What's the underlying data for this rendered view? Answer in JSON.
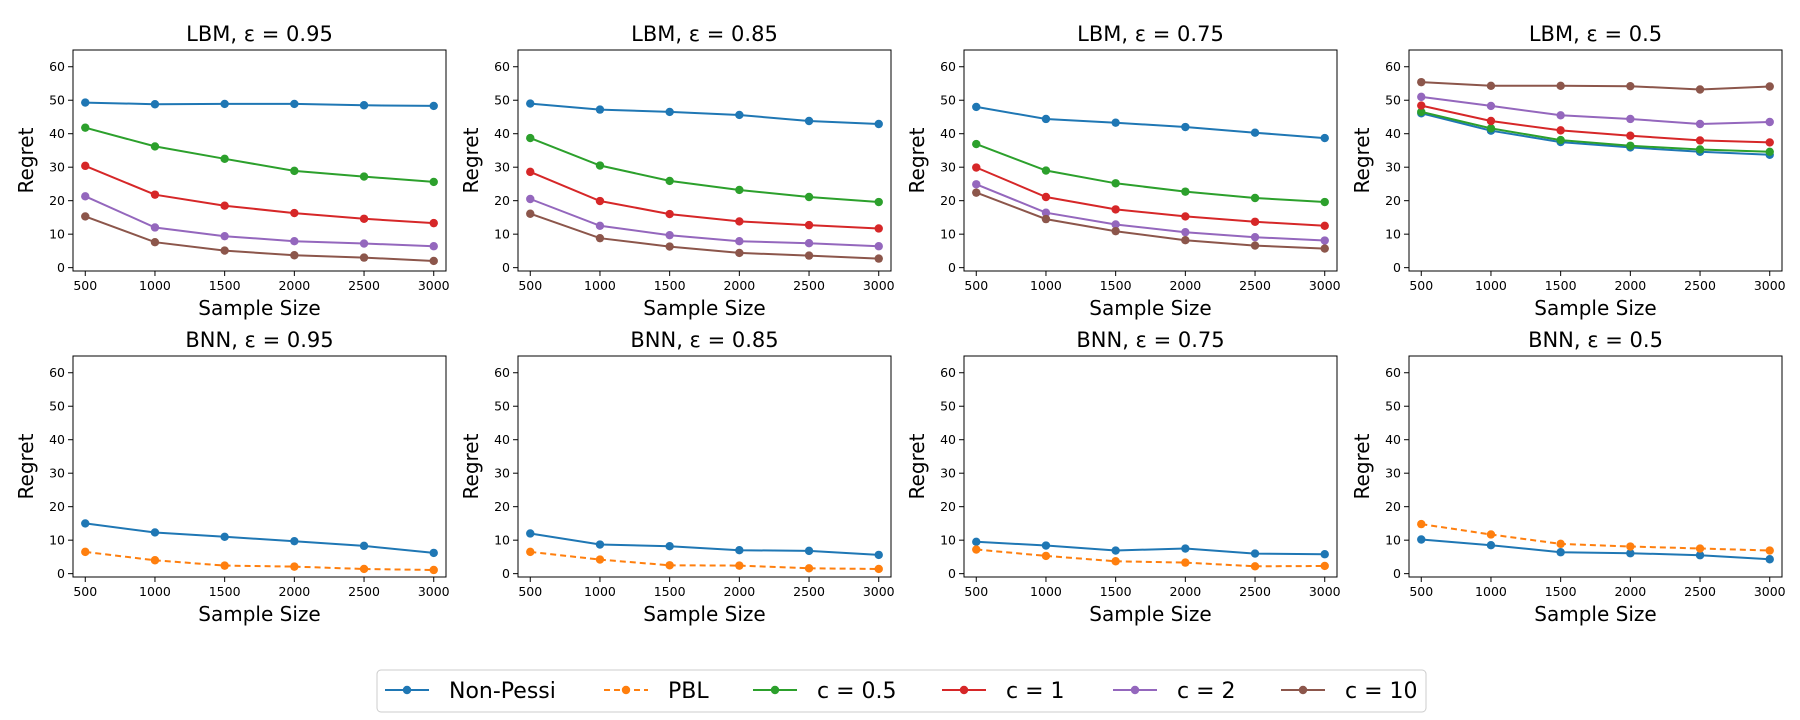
{
  "legend": {
    "entries": [
      "Non-Pessi",
      "PBL",
      "c = 0.5",
      "c = 1",
      "c = 2",
      "c = 10"
    ]
  },
  "chart_data": [
    {
      "type": "line",
      "title": "LBM, ε = 0.95",
      "xlabel": "Sample Size",
      "ylabel": "Regret",
      "x": [
        500,
        1000,
        1500,
        2000,
        2500,
        3000
      ],
      "ylim": [
        0,
        65
      ],
      "yticks": [
        0,
        10,
        20,
        30,
        40,
        50,
        60
      ],
      "series": [
        {
          "name": "Non-Pessi",
          "color": "#1f77b4",
          "style": "solid",
          "values": [
            49.3,
            48.8,
            48.9,
            48.9,
            48.5,
            48.3
          ]
        },
        {
          "name": "c = 0.5",
          "color": "#2ca02c",
          "style": "solid",
          "values": [
            41.8,
            36.2,
            32.5,
            28.9,
            27.2,
            25.6
          ]
        },
        {
          "name": "c = 1",
          "color": "#d62728",
          "style": "solid",
          "values": [
            30.4,
            21.8,
            18.5,
            16.3,
            14.6,
            13.3
          ]
        },
        {
          "name": "c = 2",
          "color": "#9467bd",
          "style": "solid",
          "values": [
            21.3,
            12.0,
            9.4,
            7.9,
            7.2,
            6.4
          ]
        },
        {
          "name": "c = 10",
          "color": "#8c564b",
          "style": "solid",
          "values": [
            15.3,
            7.6,
            5.1,
            3.7,
            3.0,
            2.0
          ]
        }
      ]
    },
    {
      "type": "line",
      "title": "LBM, ε = 0.85",
      "xlabel": "Sample Size",
      "ylabel": "Regret",
      "x": [
        500,
        1000,
        1500,
        2000,
        2500,
        3000
      ],
      "ylim": [
        0,
        65
      ],
      "yticks": [
        0,
        10,
        20,
        30,
        40,
        50,
        60
      ],
      "series": [
        {
          "name": "Non-Pessi",
          "color": "#1f77b4",
          "style": "solid",
          "values": [
            49.0,
            47.2,
            46.5,
            45.6,
            43.8,
            42.9
          ]
        },
        {
          "name": "c = 0.5",
          "color": "#2ca02c",
          "style": "solid",
          "values": [
            38.7,
            30.5,
            25.9,
            23.2,
            21.1,
            19.6
          ]
        },
        {
          "name": "c = 1",
          "color": "#d62728",
          "style": "solid",
          "values": [
            28.6,
            19.9,
            16.0,
            13.8,
            12.7,
            11.7
          ]
        },
        {
          "name": "c = 2",
          "color": "#9467bd",
          "style": "solid",
          "values": [
            20.5,
            12.5,
            9.7,
            7.9,
            7.3,
            6.4
          ]
        },
        {
          "name": "c = 10",
          "color": "#8c564b",
          "style": "solid",
          "values": [
            16.1,
            8.8,
            6.3,
            4.4,
            3.6,
            2.7
          ]
        }
      ]
    },
    {
      "type": "line",
      "title": "LBM, ε = 0.75",
      "xlabel": "Sample Size",
      "ylabel": "Regret",
      "x": [
        500,
        1000,
        1500,
        2000,
        2500,
        3000
      ],
      "ylim": [
        0,
        65
      ],
      "yticks": [
        0,
        10,
        20,
        30,
        40,
        50,
        60
      ],
      "series": [
        {
          "name": "Non-Pessi",
          "color": "#1f77b4",
          "style": "solid",
          "values": [
            48.0,
            44.4,
            43.3,
            42.0,
            40.3,
            38.7
          ]
        },
        {
          "name": "c = 0.5",
          "color": "#2ca02c",
          "style": "solid",
          "values": [
            36.9,
            29.0,
            25.2,
            22.7,
            20.8,
            19.6
          ]
        },
        {
          "name": "c = 1",
          "color": "#d62728",
          "style": "solid",
          "values": [
            29.9,
            21.1,
            17.4,
            15.3,
            13.7,
            12.5
          ]
        },
        {
          "name": "c = 2",
          "color": "#9467bd",
          "style": "solid",
          "values": [
            24.9,
            16.4,
            12.9,
            10.6,
            9.1,
            8.1
          ]
        },
        {
          "name": "c = 10",
          "color": "#8c564b",
          "style": "solid",
          "values": [
            22.4,
            14.5,
            10.9,
            8.2,
            6.6,
            5.7
          ]
        }
      ]
    },
    {
      "type": "line",
      "title": "LBM, ε = 0.5",
      "xlabel": "Sample Size",
      "ylabel": "Regret",
      "x": [
        500,
        1000,
        1500,
        2000,
        2500,
        3000
      ],
      "ylim": [
        0,
        65
      ],
      "yticks": [
        0,
        10,
        20,
        30,
        40,
        50,
        60
      ],
      "series": [
        {
          "name": "Non-Pessi",
          "color": "#1f77b4",
          "style": "solid",
          "values": [
            46.1,
            40.9,
            37.5,
            35.9,
            34.6,
            33.7
          ]
        },
        {
          "name": "c = 0.5",
          "color": "#2ca02c",
          "style": "solid",
          "values": [
            46.5,
            41.6,
            38.1,
            36.4,
            35.3,
            34.6
          ]
        },
        {
          "name": "c = 1",
          "color": "#d62728",
          "style": "solid",
          "values": [
            48.4,
            43.8,
            41.0,
            39.4,
            38.0,
            37.4
          ]
        },
        {
          "name": "c = 2",
          "color": "#9467bd",
          "style": "solid",
          "values": [
            51.0,
            48.3,
            45.5,
            44.4,
            42.9,
            43.5
          ]
        },
        {
          "name": "c = 10",
          "color": "#8c564b",
          "style": "solid",
          "values": [
            55.4,
            54.3,
            54.3,
            54.2,
            53.2,
            54.1
          ]
        }
      ]
    },
    {
      "type": "line",
      "title": "BNN, ε = 0.95",
      "xlabel": "Sample Size",
      "ylabel": "Regret",
      "x": [
        500,
        1000,
        1500,
        2000,
        2500,
        3000
      ],
      "ylim": [
        0,
        65
      ],
      "yticks": [
        0,
        10,
        20,
        30,
        40,
        50,
        60
      ],
      "series": [
        {
          "name": "Non-Pessi",
          "color": "#1f77b4",
          "style": "solid",
          "values": [
            15.0,
            12.3,
            11.0,
            9.7,
            8.3,
            6.2
          ]
        },
        {
          "name": "PBL",
          "color": "#ff7f0e",
          "style": "dashed",
          "values": [
            6.5,
            4.0,
            2.4,
            2.1,
            1.4,
            1.1
          ]
        }
      ]
    },
    {
      "type": "line",
      "title": "BNN, ε = 0.85",
      "xlabel": "Sample Size",
      "ylabel": "Regret",
      "x": [
        500,
        1000,
        1500,
        2000,
        2500,
        3000
      ],
      "ylim": [
        0,
        65
      ],
      "yticks": [
        0,
        10,
        20,
        30,
        40,
        50,
        60
      ],
      "series": [
        {
          "name": "Non-Pessi",
          "color": "#1f77b4",
          "style": "solid",
          "values": [
            12.0,
            8.7,
            8.2,
            7.0,
            6.8,
            5.6
          ]
        },
        {
          "name": "PBL",
          "color": "#ff7f0e",
          "style": "dashed",
          "values": [
            6.5,
            4.2,
            2.5,
            2.4,
            1.6,
            1.4
          ]
        }
      ]
    },
    {
      "type": "line",
      "title": "BNN, ε = 0.75",
      "xlabel": "Sample Size",
      "ylabel": "Regret",
      "x": [
        500,
        1000,
        1500,
        2000,
        2500,
        3000
      ],
      "ylim": [
        0,
        65
      ],
      "yticks": [
        0,
        10,
        20,
        30,
        40,
        50,
        60
      ],
      "series": [
        {
          "name": "Non-Pessi",
          "color": "#1f77b4",
          "style": "solid",
          "values": [
            9.5,
            8.4,
            6.9,
            7.5,
            6.0,
            5.8
          ]
        },
        {
          "name": "PBL",
          "color": "#ff7f0e",
          "style": "dashed",
          "values": [
            7.2,
            5.3,
            3.7,
            3.3,
            2.2,
            2.3
          ]
        }
      ]
    },
    {
      "type": "line",
      "title": "BNN, ε = 0.5",
      "xlabel": "Sample Size",
      "ylabel": "Regret",
      "x": [
        500,
        1000,
        1500,
        2000,
        2500,
        3000
      ],
      "ylim": [
        0,
        65
      ],
      "yticks": [
        0,
        10,
        20,
        30,
        40,
        50,
        60
      ],
      "series": [
        {
          "name": "Non-Pessi",
          "color": "#1f77b4",
          "style": "solid",
          "values": [
            10.2,
            8.5,
            6.4,
            6.1,
            5.5,
            4.3
          ]
        },
        {
          "name": "PBL",
          "color": "#ff7f0e",
          "style": "dashed",
          "values": [
            14.8,
            11.7,
            8.9,
            8.1,
            7.5,
            6.9
          ]
        }
      ]
    }
  ]
}
